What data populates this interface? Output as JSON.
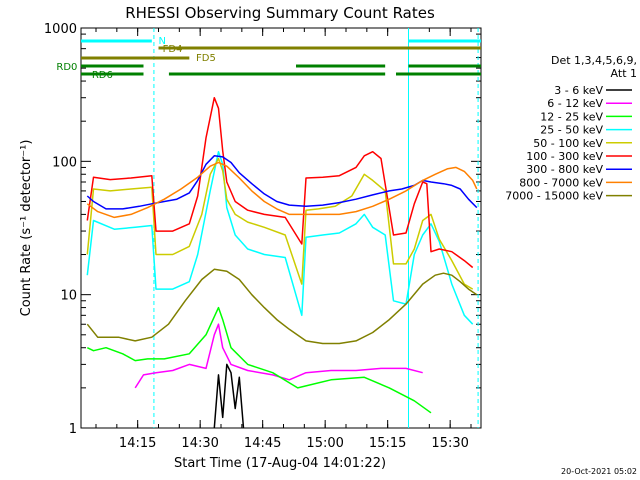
{
  "chart_data": {
    "type": "line",
    "title": "RHESSI Observing Summary Count Rates",
    "xlabel": "Start Time (17-Aug-04 14:01:22)",
    "ylabel": "Count Rate (s⁻¹ detector⁻¹)",
    "yscale": "log",
    "ylim": [
      1,
      1000
    ],
    "y_ticks": [
      {
        "value": 1,
        "label": "1"
      },
      {
        "value": 10,
        "label": "10"
      },
      {
        "value": 100,
        "label": "100"
      },
      {
        "value": 1000,
        "label": "1000"
      }
    ],
    "xlim_minutes": [
      0,
      96
    ],
    "x_ticks": [
      {
        "min": 13.6,
        "label": "14:15"
      },
      {
        "min": 28.6,
        "label": "14:30"
      },
      {
        "min": 43.6,
        "label": "14:45"
      },
      {
        "min": 58.6,
        "label": "15:00"
      },
      {
        "min": 73.6,
        "label": "15:15"
      },
      {
        "min": 88.6,
        "label": "15:30"
      }
    ],
    "legend_header": [
      "Det 1,3,4,5,6,9,",
      "Att 1"
    ],
    "legend_position": "right",
    "series": [
      {
        "name": "3 - 6 keV",
        "color": "#000000",
        "points": [
          [
            32,
            1
          ],
          [
            33,
            2.5
          ],
          [
            34,
            1.2
          ],
          [
            35,
            3
          ],
          [
            36,
            2.6
          ],
          [
            37,
            1.4
          ],
          [
            38,
            2.4
          ],
          [
            39,
            1
          ]
        ]
      },
      {
        "name": "6 - 12 keV",
        "color": "#ff00ff",
        "points": [
          [
            13,
            2
          ],
          [
            15,
            2.5
          ],
          [
            18,
            2.6
          ],
          [
            22,
            2.7
          ],
          [
            26,
            3
          ],
          [
            30,
            2.8
          ],
          [
            32,
            5
          ],
          [
            33,
            6
          ],
          [
            34,
            4
          ],
          [
            36,
            3
          ],
          [
            40,
            2.7
          ],
          [
            46,
            2.5
          ],
          [
            50,
            2.3
          ],
          [
            54,
            2.6
          ],
          [
            60,
            2.7
          ],
          [
            66,
            2.7
          ],
          [
            72,
            2.8
          ],
          [
            78,
            2.8
          ],
          [
            82,
            2.6
          ]
        ]
      },
      {
        "name": "12 - 25 keV",
        "color": "#00ff00",
        "points": [
          [
            1.5,
            4
          ],
          [
            3,
            3.8
          ],
          [
            6,
            4
          ],
          [
            10,
            3.6
          ],
          [
            13,
            3.2
          ],
          [
            16,
            3.3
          ],
          [
            20,
            3.3
          ],
          [
            26,
            3.6
          ],
          [
            30,
            5
          ],
          [
            33,
            8
          ],
          [
            34,
            6.5
          ],
          [
            36,
            4
          ],
          [
            40,
            3
          ],
          [
            46,
            2.6
          ],
          [
            52,
            2
          ],
          [
            60,
            2.3
          ],
          [
            68,
            2.4
          ],
          [
            74,
            2
          ],
          [
            80,
            1.6
          ],
          [
            84,
            1.3
          ]
        ]
      },
      {
        "name": "25 - 50 keV",
        "color": "#00ffff",
        "points": [
          [
            1.5,
            14
          ],
          [
            3,
            36
          ],
          [
            8,
            31
          ],
          [
            13,
            32
          ],
          [
            17,
            33
          ],
          [
            18,
            11
          ],
          [
            22,
            11
          ],
          [
            26,
            12.5
          ],
          [
            28,
            20
          ],
          [
            31,
            60
          ],
          [
            33,
            118
          ],
          [
            34,
            95
          ],
          [
            35,
            45
          ],
          [
            37,
            28
          ],
          [
            40,
            22
          ],
          [
            44,
            20
          ],
          [
            49,
            19
          ],
          [
            53,
            7
          ],
          [
            54,
            27
          ],
          [
            58,
            28
          ],
          [
            62,
            29
          ],
          [
            66,
            34
          ],
          [
            68,
            40
          ],
          [
            70,
            32
          ],
          [
            73,
            28
          ],
          [
            75,
            9
          ],
          [
            78,
            8.5
          ],
          [
            80,
            20
          ],
          [
            82,
            28
          ],
          [
            84,
            34
          ],
          [
            86,
            25
          ],
          [
            89,
            12
          ],
          [
            92,
            7
          ],
          [
            94,
            6
          ]
        ]
      },
      {
        "name": "50 - 100 keV",
        "color": "#cccc00",
        "points": [
          [
            1.5,
            20
          ],
          [
            3,
            62
          ],
          [
            7,
            60
          ],
          [
            12,
            62
          ],
          [
            17,
            64
          ],
          [
            18,
            20
          ],
          [
            22,
            20
          ],
          [
            26,
            23
          ],
          [
            29,
            40
          ],
          [
            31,
            80
          ],
          [
            33,
            105
          ],
          [
            34,
            85
          ],
          [
            35,
            52
          ],
          [
            37,
            40
          ],
          [
            40,
            35
          ],
          [
            44,
            32
          ],
          [
            49,
            28
          ],
          [
            53,
            12
          ],
          [
            54,
            43
          ],
          [
            57,
            44
          ],
          [
            61,
            46
          ],
          [
            65,
            55
          ],
          [
            68,
            80
          ],
          [
            70,
            72
          ],
          [
            73,
            60
          ],
          [
            75,
            17
          ],
          [
            78,
            17
          ],
          [
            80,
            22
          ],
          [
            82,
            36
          ],
          [
            84,
            40
          ],
          [
            86,
            26
          ],
          [
            89,
            18
          ],
          [
            92,
            12
          ],
          [
            94,
            11
          ]
        ]
      },
      {
        "name": "100 - 300 keV",
        "color": "#ff0000",
        "points": [
          [
            1.5,
            36
          ],
          [
            3,
            76
          ],
          [
            7,
            73
          ],
          [
            12,
            75
          ],
          [
            17,
            78
          ],
          [
            18,
            30
          ],
          [
            22,
            30
          ],
          [
            26,
            34
          ],
          [
            28,
            55
          ],
          [
            30,
            150
          ],
          [
            32,
            300
          ],
          [
            33,
            250
          ],
          [
            34,
            120
          ],
          [
            35,
            70
          ],
          [
            37,
            50
          ],
          [
            40,
            43
          ],
          [
            44,
            40
          ],
          [
            49,
            38
          ],
          [
            53,
            24
          ],
          [
            54,
            75
          ],
          [
            58,
            76
          ],
          [
            62,
            78
          ],
          [
            66,
            90
          ],
          [
            68,
            110
          ],
          [
            70,
            118
          ],
          [
            72,
            105
          ],
          [
            75,
            28
          ],
          [
            78,
            29
          ],
          [
            80,
            48
          ],
          [
            82,
            70
          ],
          [
            83,
            68
          ],
          [
            84,
            21
          ],
          [
            86,
            22
          ],
          [
            89,
            21
          ],
          [
            92,
            18
          ],
          [
            94,
            16
          ]
        ]
      },
      {
        "name": "300 - 800 keV",
        "color": "#0000ff",
        "points": [
          [
            1.5,
            55
          ],
          [
            3,
            50
          ],
          [
            6,
            44
          ],
          [
            10,
            44
          ],
          [
            14,
            46
          ],
          [
            17,
            48
          ],
          [
            20,
            50
          ],
          [
            23,
            52
          ],
          [
            26,
            58
          ],
          [
            28,
            72
          ],
          [
            30,
            95
          ],
          [
            32,
            110
          ],
          [
            34,
            108
          ],
          [
            36,
            98
          ],
          [
            38,
            82
          ],
          [
            41,
            68
          ],
          [
            44,
            57
          ],
          [
            47,
            50
          ],
          [
            50,
            47
          ],
          [
            54,
            46
          ],
          [
            58,
            47
          ],
          [
            62,
            49
          ],
          [
            66,
            52
          ],
          [
            70,
            56
          ],
          [
            74,
            60
          ],
          [
            77,
            62
          ],
          [
            80,
            66
          ],
          [
            82,
            72
          ],
          [
            84,
            70
          ],
          [
            87,
            68
          ],
          [
            89,
            66
          ],
          [
            91,
            62
          ],
          [
            93,
            52
          ],
          [
            95,
            45
          ]
        ]
      },
      {
        "name": "800 - 7000 keV",
        "color": "#ff8000",
        "points": [
          [
            1.5,
            48
          ],
          [
            4,
            42
          ],
          [
            8,
            38
          ],
          [
            12,
            40
          ],
          [
            16,
            45
          ],
          [
            20,
            52
          ],
          [
            24,
            62
          ],
          [
            28,
            76
          ],
          [
            31,
            92
          ],
          [
            33,
            98
          ],
          [
            35,
            92
          ],
          [
            38,
            75
          ],
          [
            41,
            60
          ],
          [
            44,
            50
          ],
          [
            47,
            44
          ],
          [
            50,
            40
          ],
          [
            54,
            40
          ],
          [
            58,
            40
          ],
          [
            62,
            40
          ],
          [
            66,
            42
          ],
          [
            70,
            46
          ],
          [
            74,
            52
          ],
          [
            78,
            60
          ],
          [
            82,
            72
          ],
          [
            85,
            80
          ],
          [
            88,
            88
          ],
          [
            90,
            90
          ],
          [
            92,
            84
          ],
          [
            94,
            72
          ],
          [
            95,
            62
          ]
        ]
      },
      {
        "name": "7000 - 15000 keV",
        "color": "#808000",
        "points": [
          [
            1.5,
            6
          ],
          [
            4,
            4.8
          ],
          [
            9,
            4.8
          ],
          [
            13,
            4.5
          ],
          [
            17,
            4.8
          ],
          [
            21,
            6
          ],
          [
            25,
            9
          ],
          [
            29,
            13
          ],
          [
            32,
            15.5
          ],
          [
            35,
            15
          ],
          [
            38,
            13
          ],
          [
            41,
            10
          ],
          [
            44,
            8
          ],
          [
            47,
            6.5
          ],
          [
            50,
            5.5
          ],
          [
            54,
            4.5
          ],
          [
            58,
            4.3
          ],
          [
            62,
            4.3
          ],
          [
            66,
            4.5
          ],
          [
            70,
            5.2
          ],
          [
            74,
            6.5
          ],
          [
            78,
            8.5
          ],
          [
            82,
            12
          ],
          [
            85,
            14
          ],
          [
            87,
            14.5
          ],
          [
            89,
            14
          ],
          [
            91,
            12.5
          ],
          [
            93,
            11
          ],
          [
            95,
            10
          ]
        ]
      }
    ],
    "attenuator_lines": [
      {
        "label": "N",
        "color": "#00ffff",
        "label_min": 18.6,
        "label_y": 40,
        "y": 41,
        "segments": [
          [
            0,
            17
          ],
          [
            78.6,
            96
          ]
        ]
      },
      {
        "label": "FD4",
        "color": "#808000",
        "label_min": 19.6,
        "label_y": 48,
        "y": 48,
        "segments": [
          [
            18.6,
            96
          ]
        ]
      },
      {
        "label": "FD5",
        "color": "#808000",
        "label_min": 27.6,
        "label_y": 57,
        "y": 58,
        "segments": [
          [
            0,
            26
          ]
        ]
      },
      {
        "label": "RD0",
        "color": "#008000",
        "label_min": -5.9,
        "label_y": 66,
        "y": 66,
        "segments": [
          [
            0,
            15
          ],
          [
            51.6,
            73
          ],
          [
            78.6,
            96
          ]
        ]
      },
      {
        "label": "RD6",
        "color": "#008000",
        "label_min": 2.6,
        "label_y": 74,
        "y": 74,
        "segments": [
          [
            0,
            15
          ],
          [
            21.1,
            73
          ],
          [
            75.6,
            96
          ]
        ]
      }
    ],
    "vertical_dashed_minutes": [
      17.5,
      95.3
    ],
    "vertical_solid_minutes": [
      78.6
    ]
  },
  "footer_timestamp": "20-Oct-2021 05:02"
}
